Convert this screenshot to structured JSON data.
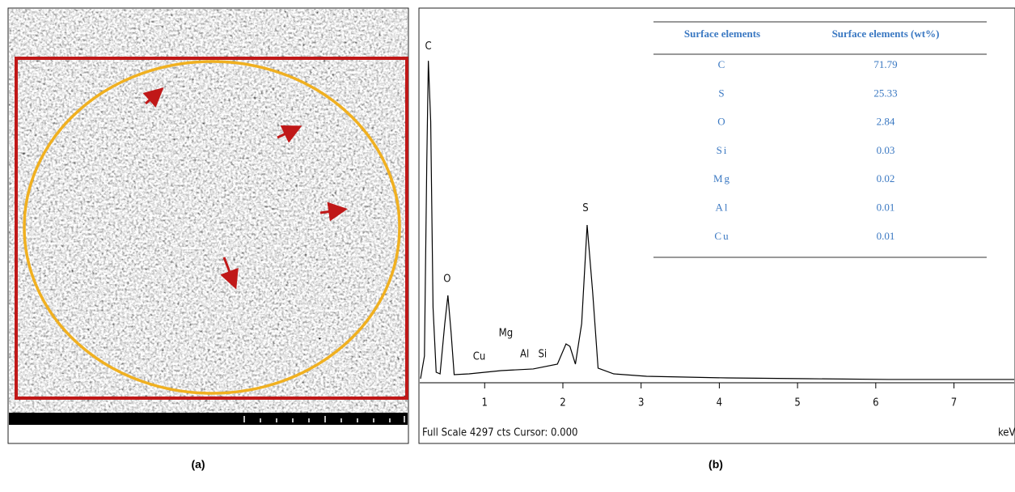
{
  "chart_data": {
    "type": "line",
    "x": [
      0.18,
      0.23,
      0.26,
      0.28,
      0.31,
      0.34,
      0.38,
      0.43,
      0.49,
      0.53,
      0.57,
      0.61,
      0.8,
      1.21,
      1.62,
      1.93,
      2.04,
      2.09,
      2.16,
      2.24,
      2.31,
      2.38,
      2.45,
      2.65,
      3.07,
      4.1,
      5.13,
      6.16,
      7.77
    ],
    "values": [
      47,
      310,
      2560,
      3733,
      3030,
      872,
      122,
      103,
      685,
      1013,
      591,
      94,
      103,
      141,
      160,
      216,
      450,
      422,
      216,
      685,
      1829,
      1060,
      169,
      103,
      75,
      56,
      47,
      38,
      38
    ],
    "color": "#000000",
    "xlim": [
      0.17,
      7.77
    ],
    "ylim": [
      0,
      4297
    ],
    "xticks": [
      1,
      2,
      3,
      4,
      5,
      6,
      7
    ],
    "xlabel": "keV",
    "footer": "Full Scale 4297 cts Cursor: 0.000",
    "annotations": [
      {
        "text": "C",
        "x": 0.28,
        "y": 3900
      },
      {
        "text": "O",
        "x": 0.52,
        "y": 1200
      },
      {
        "text": "Cu",
        "x": 0.93,
        "y": 300
      },
      {
        "text": "Mg",
        "x": 1.27,
        "y": 570
      },
      {
        "text": "Al",
        "x": 1.51,
        "y": 330
      },
      {
        "text": "Si",
        "x": 1.74,
        "y": 330
      },
      {
        "text": "S",
        "x": 2.29,
        "y": 2020
      }
    ]
  },
  "table": {
    "header": [
      "Surface elements",
      "Surface elements (wt%)"
    ],
    "rows": [
      [
        "C",
        71.79
      ],
      [
        "S",
        25.33
      ],
      [
        "O",
        2.84
      ],
      [
        "Si",
        0.03
      ],
      [
        "Mg",
        0.02
      ],
      [
        "Al",
        0.01
      ],
      [
        "Cu",
        0.01
      ]
    ]
  },
  "panels": [
    "(a)",
    "(b)"
  ]
}
